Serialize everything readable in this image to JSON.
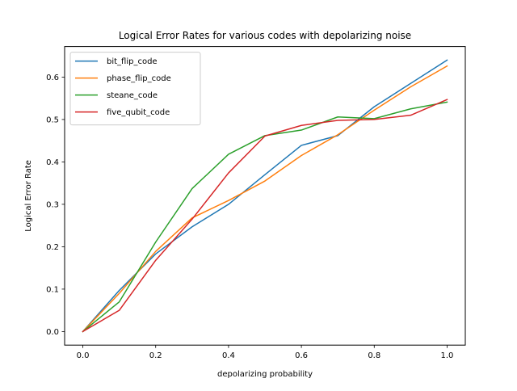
{
  "chart_data": {
    "type": "line",
    "title": "Logical Error Rates for various codes with depolarizing noise",
    "xlabel": "depolarizing probability",
    "ylabel": "Logical Error Rate",
    "x": [
      0.0,
      0.1,
      0.2,
      0.3,
      0.4,
      0.5,
      0.6,
      0.7,
      0.8,
      0.9,
      1.0
    ],
    "xlim": [
      -0.05,
      1.05
    ],
    "ylim": [
      -0.032,
      0.672
    ],
    "xticks": [
      0.0,
      0.2,
      0.4,
      0.6,
      0.8,
      1.0
    ],
    "xtick_labels": [
      "0.0",
      "0.2",
      "0.4",
      "0.6",
      "0.8",
      "1.0"
    ],
    "yticks": [
      0.0,
      0.1,
      0.2,
      0.3,
      0.4,
      0.5,
      0.6
    ],
    "ytick_labels": [
      "0.0",
      "0.1",
      "0.2",
      "0.3",
      "0.4",
      "0.5",
      "0.6"
    ],
    "grid": false,
    "legend_position": "upper-left",
    "series": [
      {
        "name": "bit_flip_code",
        "color": "#1f77b4",
        "values": [
          0.0,
          0.097,
          0.183,
          0.247,
          0.3,
          0.37,
          0.439,
          0.462,
          0.53,
          0.585,
          0.64
        ]
      },
      {
        "name": "phase_flip_code",
        "color": "#ff7f0e",
        "values": [
          0.0,
          0.09,
          0.189,
          0.268,
          0.309,
          0.355,
          0.415,
          0.464,
          0.522,
          0.577,
          0.626
        ]
      },
      {
        "name": "steane_code",
        "color": "#2ca02c",
        "values": [
          0.0,
          0.07,
          0.211,
          0.337,
          0.418,
          0.462,
          0.475,
          0.506,
          0.502,
          0.525,
          0.541
        ]
      },
      {
        "name": "five_qubit_code",
        "color": "#d62728",
        "values": [
          0.0,
          0.05,
          0.168,
          0.265,
          0.374,
          0.461,
          0.486,
          0.498,
          0.5,
          0.51,
          0.547
        ]
      }
    ]
  }
}
